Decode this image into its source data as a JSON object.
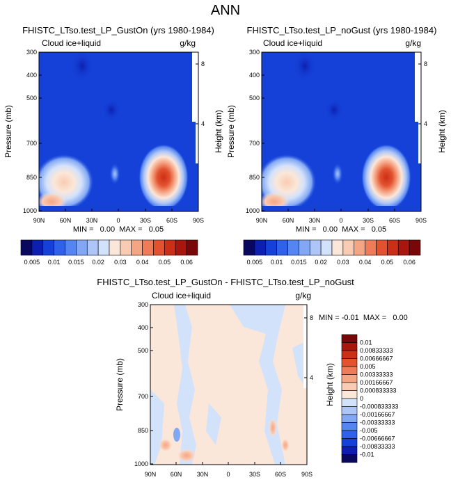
{
  "main_title": "ANN",
  "colors": {
    "diverging": [
      "#08085e",
      "#0c1fb0",
      "#1541d8",
      "#2f62e8",
      "#5585f0",
      "#82a8f4",
      "#adc6f7",
      "#d3e2fb",
      "#fbe7da",
      "#f9cbb2",
      "#f5a584",
      "#ef7b58",
      "#e2522f",
      "#cc2f18",
      "#a8160d",
      "#7a0708"
    ],
    "sequential": [
      "#08085e",
      "#0c1fb0",
      "#1541d8",
      "#2f62e8",
      "#5585f0",
      "#82a8f4",
      "#adc6f7",
      "#d3e2fb",
      "#fbe7da",
      "#f9cbb2",
      "#f5a584",
      "#ef7b58",
      "#e2522f",
      "#cc2f18",
      "#a8160d",
      "#7a0708"
    ]
  },
  "chart_data": [
    {
      "type": "heatmap",
      "title": "FHISTC_LTso.test_LP_GustOn (yrs 1980-1984)",
      "left_label": "Cloud ice+liquid",
      "right_label": "g/kg",
      "ylabel": "Pressure (mb)",
      "ylabel_right": "Height (km)",
      "xticks": [
        "90N",
        "60N",
        "30N",
        "0",
        "30S",
        "60S",
        "90S"
      ],
      "yticks": [
        "300",
        "400",
        "500",
        "700",
        "850",
        "1000"
      ],
      "yticks_right": [
        "8",
        "4"
      ],
      "stats": "MIN =   0.00  MAX =   0.05",
      "levels": [
        "0.005",
        "0.01",
        "0.015",
        "0.02",
        "0.03",
        "0.04",
        "0.05",
        "0.06"
      ],
      "ylim": [
        1000,
        300
      ],
      "xlim": [
        90,
        -90
      ]
    },
    {
      "type": "heatmap",
      "title": "FHISTC_LTso.test_LP_noGust (yrs 1980-1984)",
      "left_label": "Cloud ice+liquid",
      "right_label": "g/kg",
      "ylabel": "Pressure (mb)",
      "ylabel_right": "Height (km)",
      "xticks": [
        "90N",
        "60N",
        "30N",
        "0",
        "30S",
        "60S",
        "90S"
      ],
      "yticks": [
        "300",
        "400",
        "500",
        "700",
        "850",
        "1000"
      ],
      "yticks_right": [
        "8",
        "4"
      ],
      "stats": "MIN =   0.00  MAX =   0.05",
      "levels": [
        "0.005",
        "0.01",
        "0.015",
        "0.02",
        "0.03",
        "0.04",
        "0.05",
        "0.06"
      ],
      "ylim": [
        1000,
        300
      ],
      "xlim": [
        90,
        -90
      ]
    },
    {
      "type": "heatmap",
      "title": "FHISTC_LTso.test_LP_GustOn - FHISTC_LTso.test_LP_noGust",
      "left_label": "Cloud ice+liquid",
      "right_label": "g/kg",
      "ylabel": "Pressure (mb)",
      "ylabel_right": "Height (km)",
      "xticks": [
        "90N",
        "60N",
        "30N",
        "0",
        "30S",
        "60S",
        "90S"
      ],
      "yticks": [
        "300",
        "400",
        "500",
        "700",
        "850",
        "1000"
      ],
      "yticks_right": [
        "8",
        "4"
      ],
      "stats": "MIN = -0.01  MAX =   0.00",
      "levels": [
        "0.01",
        "0.00833333",
        "0.00666667",
        "0.005",
        "0.00333333",
        "0.00166667",
        "0.000833333",
        "0",
        "-0.000833333",
        "-0.00166667",
        "-0.00333333",
        "-0.005",
        "-0.00666667",
        "-0.00833333",
        "-0.01"
      ],
      "ylim": [
        1000,
        300
      ],
      "xlim": [
        90,
        -90
      ]
    }
  ]
}
